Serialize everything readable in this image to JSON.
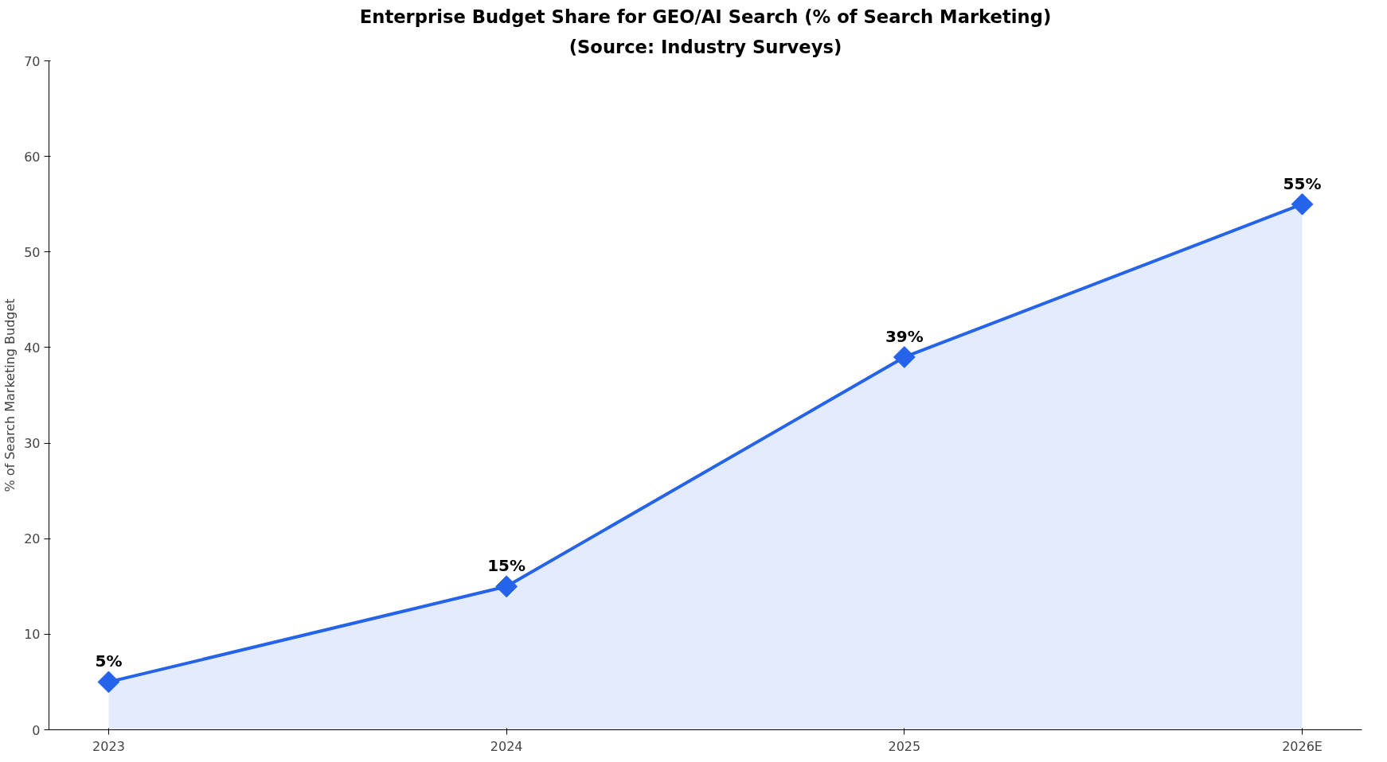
{
  "chart_data": {
    "type": "area",
    "title": "Enterprise Budget Share for GEO/AI Search (% of Search Marketing)",
    "subtitle": "(Source: Industry Surveys)",
    "ylabel": "% of Search Marketing Budget",
    "categories": [
      "2023",
      "2024",
      "2025",
      "2026E"
    ],
    "series": [
      {
        "color": "#2563eb",
        "values": [
          5,
          15,
          39,
          55
        ],
        "value_labels": [
          "5%",
          "15%",
          "39%",
          "55%"
        ]
      }
    ],
    "ylim": [
      0,
      70
    ],
    "yticks": [
      0,
      10,
      20,
      30,
      40,
      50,
      60,
      70
    ],
    "grid": false,
    "marker": "diamond",
    "line_style": "solid"
  }
}
